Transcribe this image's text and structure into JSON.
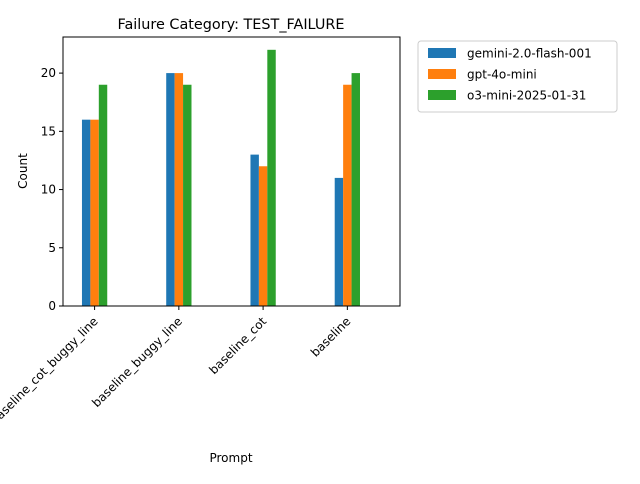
{
  "chart_data": {
    "type": "bar",
    "title": "Failure Category: TEST_FAILURE",
    "xlabel": "Prompt",
    "ylabel": "Count",
    "ylim": [
      0,
      23.1
    ],
    "yticks": [
      0,
      5,
      10,
      15,
      20
    ],
    "grid": false,
    "legend_position": "outside-top-right",
    "categories": [
      "baseline_cot_buggy_line",
      "baseline_buggy_line",
      "baseline_cot",
      "baseline"
    ],
    "series": [
      {
        "name": "gemini-2.0-flash-001",
        "color": "#1f77b4",
        "values": [
          16,
          20,
          13,
          11
        ]
      },
      {
        "name": "gpt-4o-mini",
        "color": "#ff7f0e",
        "values": [
          16,
          20,
          12,
          19
        ]
      },
      {
        "name": "o3-mini-2025-01-31",
        "color": "#2ca02c",
        "values": [
          19,
          19,
          22,
          20
        ]
      }
    ]
  }
}
